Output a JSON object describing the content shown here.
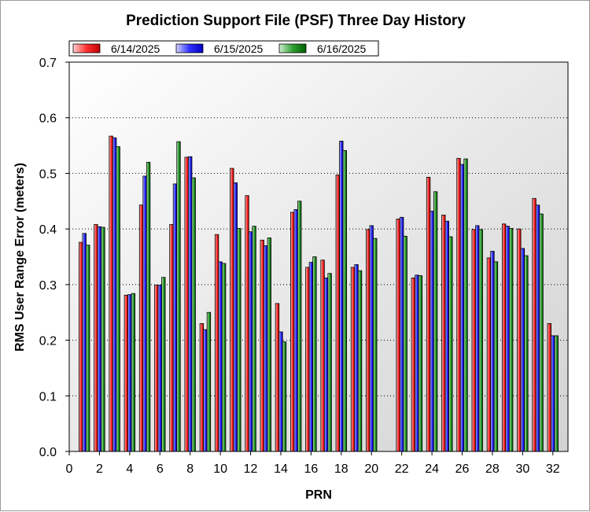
{
  "chart_data": {
    "type": "bar",
    "title": "Prediction Support File (PSF) Three Day History",
    "xlabel": "PRN",
    "ylabel": "RMS User Range Error (meters)",
    "xlim": [
      0,
      33
    ],
    "ylim": [
      0,
      0.7
    ],
    "x_ticks": [
      0,
      2,
      4,
      6,
      8,
      10,
      12,
      14,
      16,
      18,
      20,
      22,
      24,
      26,
      28,
      30,
      32
    ],
    "y_ticks": [
      "0.0",
      "0.1",
      "0.2",
      "0.3",
      "0.4",
      "0.5",
      "0.6",
      "0.7"
    ],
    "grid": true,
    "legend_position": "top-left",
    "categories": [
      1,
      2,
      3,
      4,
      5,
      6,
      7,
      8,
      9,
      10,
      11,
      12,
      13,
      14,
      15,
      16,
      17,
      18,
      19,
      20,
      21,
      22,
      23,
      24,
      25,
      26,
      27,
      28,
      29,
      30,
      31,
      32
    ],
    "series": [
      {
        "name": "6/14/2025",
        "color": "#ff0000",
        "values": [
          0.376,
          0.408,
          0.567,
          0.281,
          0.443,
          0.299,
          0.408,
          0.529,
          0.23,
          0.39,
          0.509,
          0.46,
          0.38,
          0.266,
          0.43,
          0.331,
          0.344,
          0.497,
          0.331,
          0.399,
          null,
          0.418,
          0.312,
          0.493,
          0.425,
          0.527,
          0.399,
          0.348,
          0.409,
          0.4,
          0.455,
          0.23
        ]
      },
      {
        "name": "6/15/2025",
        "color": "#0000ff",
        "values": [
          0.392,
          0.404,
          0.564,
          0.282,
          0.495,
          0.299,
          0.481,
          0.53,
          0.219,
          0.341,
          0.483,
          0.395,
          0.37,
          0.215,
          0.435,
          0.34,
          0.312,
          0.558,
          0.336,
          0.406,
          null,
          0.421,
          0.317,
          0.432,
          0.414,
          0.516,
          0.406,
          0.36,
          0.405,
          0.365,
          0.443,
          0.208
        ]
      },
      {
        "name": "6/16/2025",
        "color": "#008000",
        "values": [
          0.371,
          0.403,
          0.548,
          0.284,
          0.52,
          0.313,
          0.557,
          0.492,
          0.25,
          0.338,
          0.401,
          0.405,
          0.384,
          0.197,
          0.45,
          0.35,
          0.32,
          0.541,
          0.325,
          0.383,
          null,
          0.387,
          0.316,
          0.467,
          0.386,
          0.526,
          0.399,
          0.341,
          0.401,
          0.352,
          0.427,
          0.208
        ]
      }
    ]
  }
}
